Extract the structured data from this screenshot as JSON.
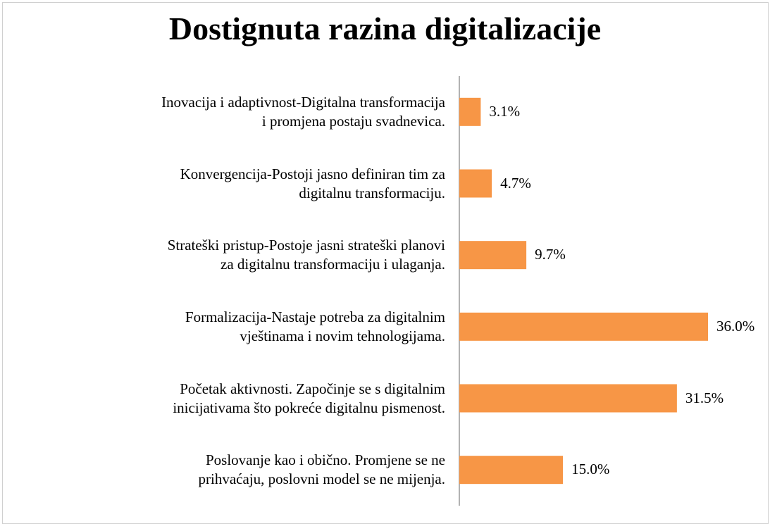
{
  "chart_data": {
    "type": "bar",
    "orientation": "horizontal",
    "title": "Dostignuta razina digitalizacije",
    "categories": [
      "Inovacija i adaptivnost-Digitalna transformacija\ni promjena postaju svadnevica.",
      "Konvergencija-Postoji jasno definiran tim za\ndigitalnu transformaciju.",
      "Strateški pristup-Postoje jasni strateški planovi\nza digitalnu transformaciju i ulaganja.",
      "Formalizacija-Nastaje potreba za digitalnim\nvještinama i novim tehnologijama.",
      "Početak aktivnosti. Započinje se s digitalnim\ninicijativama što pokreće digitalnu pismenost.",
      "Poslovanje kao i obično. Promjene se ne\nprihvaćaju, poslovni model se ne mijenja."
    ],
    "values": [
      3.1,
      4.7,
      9.7,
      36.0,
      31.5,
      15.0
    ],
    "value_labels": [
      "3.1%",
      "4.7%",
      "9.7%",
      "36.0%",
      "31.5%",
      "15.0%"
    ],
    "color": "#f79646"
  }
}
